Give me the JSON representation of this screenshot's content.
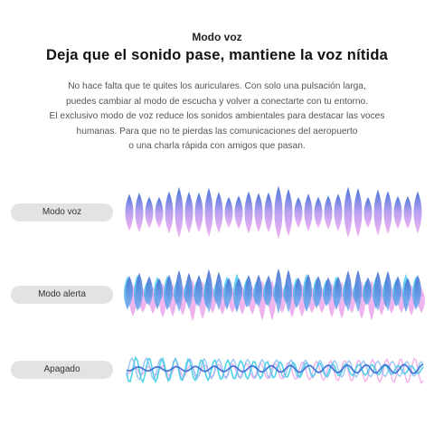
{
  "header": {
    "eyebrow": "Modo voz",
    "title": "Deja que el sonido pase, mantiene la voz nítida"
  },
  "paragraph": {
    "lines": [
      "No hace falta que te quites los auriculares. Con solo una pulsación larga,",
      "puedes cambiar al modo de escucha y volver a conectarte con tu entorno.",
      "El exclusivo modo de voz reduce los sonidos ambientales para destacar las voces",
      "humanas. Para que no te pierdas las comunicaciones del aeropuerto",
      "o una charla rápida con amigos que pasan."
    ]
  },
  "modes": [
    {
      "label": "Modo voz"
    },
    {
      "label": "Modo alerta"
    },
    {
      "label": "Apagado"
    }
  ]
}
